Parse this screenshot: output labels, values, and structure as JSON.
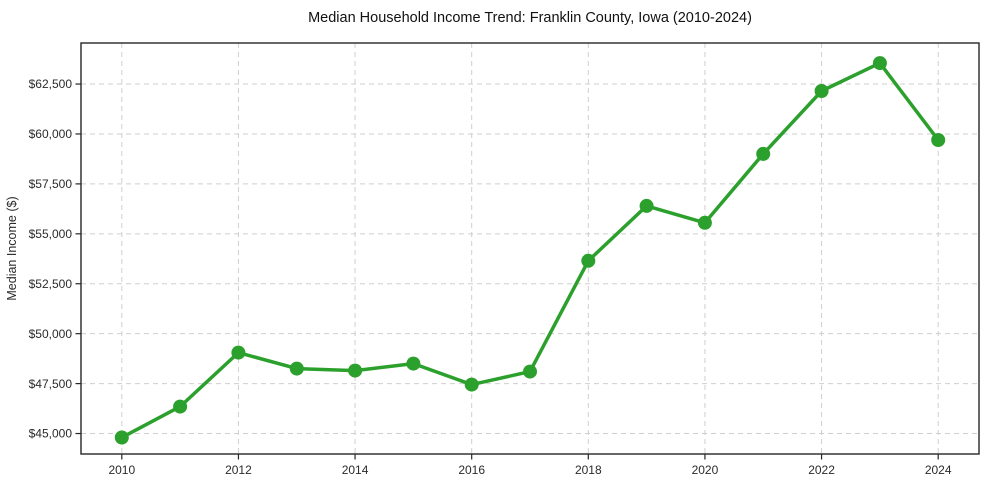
{
  "chart_data": {
    "type": "line",
    "title": "Median Household Income Trend: Franklin County, Iowa (2010-2024)",
    "xlabel": "",
    "ylabel": "Median Income ($)",
    "x": [
      2010,
      2011,
      2012,
      2013,
      2014,
      2015,
      2016,
      2017,
      2018,
      2019,
      2020,
      2021,
      2022,
      2023,
      2024
    ],
    "values": [
      44800,
      46350,
      49050,
      48250,
      48150,
      48500,
      47450,
      48100,
      53650,
      56400,
      55550,
      59000,
      62150,
      63550,
      59700
    ],
    "xticks": [
      2010,
      2012,
      2014,
      2016,
      2018,
      2020,
      2022,
      2024
    ],
    "xtick_labels": [
      "2010",
      "2012",
      "2014",
      "2016",
      "2018",
      "2020",
      "2022",
      "2024"
    ],
    "yticks": [
      45000,
      47500,
      50000,
      52500,
      55000,
      57500,
      60000,
      62500
    ],
    "ytick_labels": [
      "$45,000",
      "$47,500",
      "$50,000",
      "$52,500",
      "$55,000",
      "$57,500",
      "$60,000",
      "$62,500"
    ],
    "xlim": [
      2009.3,
      2024.7
    ],
    "ylim": [
      43975,
      64555
    ],
    "grid": true,
    "grid_style": "dashed",
    "legend_position": "none",
    "line_color": "#2ca02c",
    "grid_color": "#cfcfcf",
    "spine_color": "#262626",
    "marker": "circle"
  }
}
